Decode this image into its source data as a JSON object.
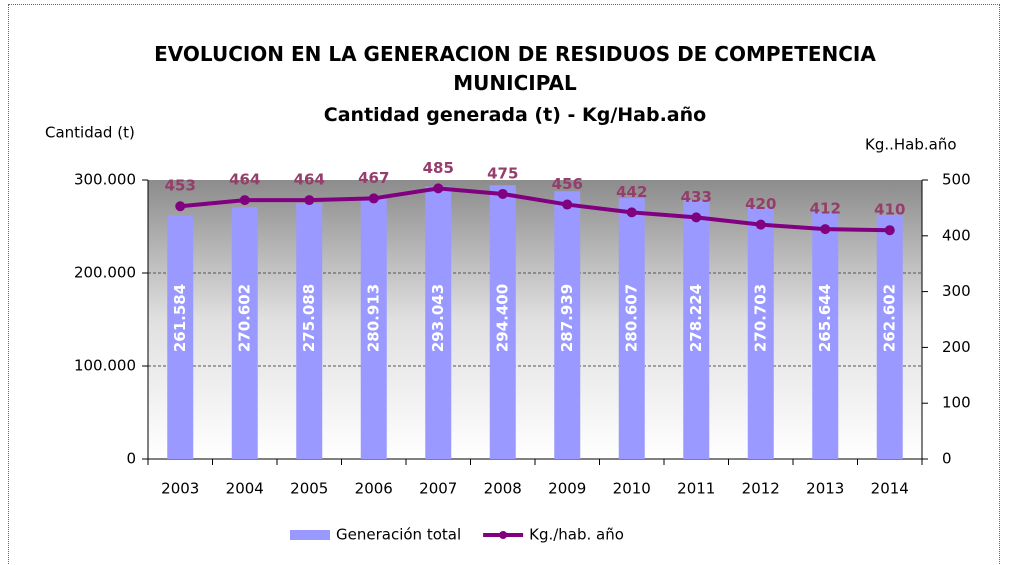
{
  "chart_data": {
    "type": "bar-line",
    "title": "EVOLUCION EN LA GENERACION DE RESIDUOS DE COMPETENCIA MUNICIPAL",
    "subtitle": "Cantidad generada (t) - Kg/Hab.año",
    "y_label": "Cantidad (t)",
    "y2_label": "Kg..Hab.año",
    "categories": [
      "2003",
      "2004",
      "2005",
      "2006",
      "2007",
      "2008",
      "2009",
      "2010",
      "2011",
      "2012",
      "2013",
      "2014"
    ],
    "series": [
      {
        "name": "Generación total",
        "type": "bar",
        "color": "#9999ff",
        "values": [
          261584,
          270602,
          275088,
          280913,
          293043,
          294400,
          287939,
          280607,
          278224,
          270703,
          265644,
          262602
        ],
        "value_labels": [
          "261.584",
          "270.602",
          "275.088",
          "280.913",
          "293.043",
          "294.400",
          "287.939",
          "280.607",
          "278.224",
          "270.703",
          "265.644",
          "262.602"
        ]
      },
      {
        "name": "Kg./hab. año",
        "type": "line",
        "axis": "y2",
        "color": "#800080",
        "values": [
          453,
          464,
          464,
          467,
          485,
          475,
          456,
          442,
          433,
          420,
          412,
          410
        ]
      }
    ],
    "ylim": [
      0,
      300000
    ],
    "yticks": [
      0,
      {
        "value": 100000,
        "label": "100.000"
      },
      {
        "value": 200000,
        "label": "200.000"
      },
      {
        "value": 300000,
        "label": "300.000"
      }
    ],
    "y2lim": [
      0,
      500
    ],
    "y2ticks": [
      0,
      100,
      200,
      300,
      400,
      500
    ],
    "grid": true
  }
}
